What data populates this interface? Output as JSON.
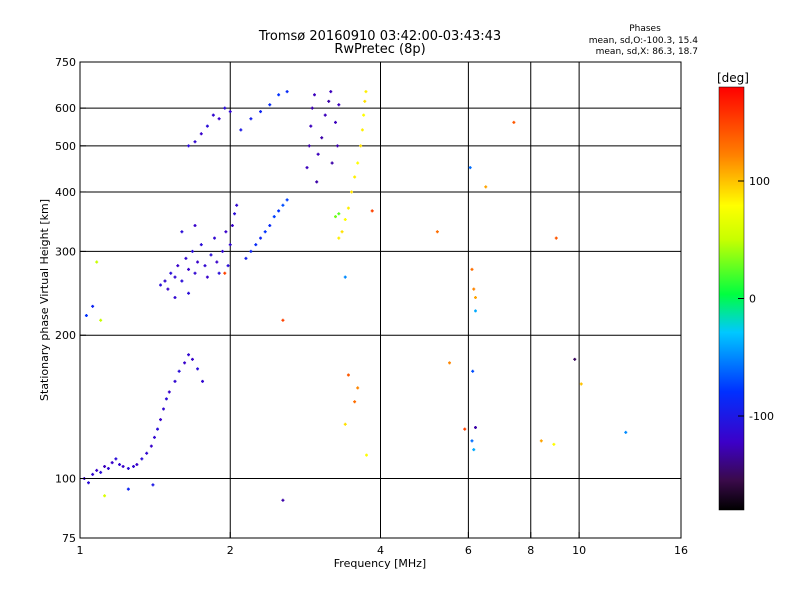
{
  "header": {
    "title": "Tromsø 20160910 03:42:00-03:43:43",
    "subtitle": "RwPretec (8p)",
    "phases_label": "Phases",
    "phases_o": "mean, sd,O:-100.3, 15.4",
    "phases_x": "mean, sd,X:  86.3, 18.7"
  },
  "colorbar": {
    "unit": "[deg]",
    "ticks": [
      {
        "value": 100,
        "label": "100"
      },
      {
        "value": 0,
        "label": "0"
      },
      {
        "value": -100,
        "label": "-100"
      }
    ],
    "range": [
      -180,
      180
    ]
  },
  "chart_data": {
    "type": "scatter",
    "xlabel": "Frequency [MHz]",
    "ylabel": "Stationary phase Virtual Height [km]",
    "xscale": "log",
    "yscale": "log",
    "xlim": [
      1,
      16
    ],
    "ylim": [
      75,
      750
    ],
    "xticks": [
      {
        "value": 1,
        "label": "1"
      },
      {
        "value": 2,
        "label": "2"
      },
      {
        "value": 4,
        "label": "4"
      },
      {
        "value": 6,
        "label": "6"
      },
      {
        "value": 8,
        "label": "8"
      },
      {
        "value": 10,
        "label": "10"
      },
      {
        "value": 16,
        "label": "16"
      }
    ],
    "xgrid": [
      2,
      4,
      6,
      8,
      10
    ],
    "yticks": [
      {
        "value": 75,
        "label": "75"
      },
      {
        "value": 100,
        "label": "100"
      },
      {
        "value": 200,
        "label": "200"
      },
      {
        "value": 300,
        "label": "300"
      },
      {
        "value": 400,
        "label": "400"
      },
      {
        "value": 500,
        "label": "500"
      },
      {
        "value": 600,
        "label": "600"
      },
      {
        "value": 750,
        "label": "750"
      }
    ],
    "ygrid": [
      100,
      200,
      300,
      400,
      500,
      600
    ],
    "grid": true,
    "series": [
      {
        "points": [
          {
            "x": 1.02,
            "y": 100,
            "phase": -120
          },
          {
            "x": 1.04,
            "y": 98,
            "phase": -110
          },
          {
            "x": 1.06,
            "y": 102,
            "phase": -115
          },
          {
            "x": 1.08,
            "y": 104,
            "phase": -120
          },
          {
            "x": 1.1,
            "y": 103,
            "phase": -110
          },
          {
            "x": 1.12,
            "y": 106,
            "phase": -125
          },
          {
            "x": 1.14,
            "y": 105,
            "phase": -115
          },
          {
            "x": 1.16,
            "y": 108,
            "phase": -120
          },
          {
            "x": 1.18,
            "y": 110,
            "phase": -110
          },
          {
            "x": 1.2,
            "y": 107,
            "phase": -115
          },
          {
            "x": 1.22,
            "y": 106,
            "phase": -120
          },
          {
            "x": 1.25,
            "y": 105,
            "phase": -110
          },
          {
            "x": 1.28,
            "y": 106,
            "phase": -115
          },
          {
            "x": 1.3,
            "y": 107,
            "phase": -120
          },
          {
            "x": 1.33,
            "y": 110,
            "phase": -110
          },
          {
            "x": 1.36,
            "y": 113,
            "phase": -115
          },
          {
            "x": 1.39,
            "y": 117,
            "phase": -120
          },
          {
            "x": 1.41,
            "y": 122,
            "phase": -115
          },
          {
            "x": 1.43,
            "y": 127,
            "phase": -110
          },
          {
            "x": 1.45,
            "y": 133,
            "phase": -120
          },
          {
            "x": 1.47,
            "y": 140,
            "phase": -115
          },
          {
            "x": 1.49,
            "y": 147,
            "phase": -110
          },
          {
            "x": 1.51,
            "y": 152,
            "phase": -120
          },
          {
            "x": 1.55,
            "y": 160,
            "phase": -115
          },
          {
            "x": 1.58,
            "y": 168,
            "phase": -110
          },
          {
            "x": 1.62,
            "y": 175,
            "phase": -120
          },
          {
            "x": 1.65,
            "y": 182,
            "phase": -115
          },
          {
            "x": 1.68,
            "y": 178,
            "phase": -120
          },
          {
            "x": 1.72,
            "y": 170,
            "phase": -110
          },
          {
            "x": 1.76,
            "y": 160,
            "phase": -115
          },
          {
            "x": 1.12,
            "y": 92,
            "phase": 60
          },
          {
            "x": 1.25,
            "y": 95,
            "phase": -90
          },
          {
            "x": 1.4,
            "y": 97,
            "phase": -100
          },
          {
            "x": 1.08,
            "y": 285,
            "phase": 50
          },
          {
            "x": 1.1,
            "y": 215,
            "phase": 50
          },
          {
            "x": 1.03,
            "y": 220,
            "phase": -80
          },
          {
            "x": 1.06,
            "y": 230,
            "phase": -90
          },
          {
            "x": 1.45,
            "y": 255,
            "phase": -110
          },
          {
            "x": 1.48,
            "y": 260,
            "phase": -115
          },
          {
            "x": 1.5,
            "y": 250,
            "phase": -120
          },
          {
            "x": 1.52,
            "y": 270,
            "phase": -110
          },
          {
            "x": 1.55,
            "y": 265,
            "phase": -115
          },
          {
            "x": 1.57,
            "y": 280,
            "phase": -120
          },
          {
            "x": 1.6,
            "y": 260,
            "phase": -110
          },
          {
            "x": 1.63,
            "y": 290,
            "phase": -115
          },
          {
            "x": 1.65,
            "y": 275,
            "phase": -120
          },
          {
            "x": 1.68,
            "y": 300,
            "phase": -110
          },
          {
            "x": 1.7,
            "y": 270,
            "phase": -115
          },
          {
            "x": 1.72,
            "y": 285,
            "phase": -120
          },
          {
            "x": 1.75,
            "y": 310,
            "phase": -110
          },
          {
            "x": 1.78,
            "y": 280,
            "phase": -115
          },
          {
            "x": 1.8,
            "y": 265,
            "phase": -120
          },
          {
            "x": 1.83,
            "y": 295,
            "phase": -110
          },
          {
            "x": 1.86,
            "y": 320,
            "phase": -115
          },
          {
            "x": 1.88,
            "y": 285,
            "phase": -120
          },
          {
            "x": 1.9,
            "y": 270,
            "phase": -110
          },
          {
            "x": 1.93,
            "y": 300,
            "phase": -115
          },
          {
            "x": 1.96,
            "y": 330,
            "phase": -120
          },
          {
            "x": 1.98,
            "y": 280,
            "phase": -110
          },
          {
            "x": 2.0,
            "y": 310,
            "phase": -115
          },
          {
            "x": 2.02,
            "y": 340,
            "phase": -120
          },
          {
            "x": 2.04,
            "y": 360,
            "phase": -110
          },
          {
            "x": 2.06,
            "y": 375,
            "phase": -115
          },
          {
            "x": 1.6,
            "y": 330,
            "phase": -110
          },
          {
            "x": 1.7,
            "y": 340,
            "phase": -120
          },
          {
            "x": 1.55,
            "y": 240,
            "phase": -115
          },
          {
            "x": 1.65,
            "y": 245,
            "phase": -110
          },
          {
            "x": 2.15,
            "y": 290,
            "phase": -95
          },
          {
            "x": 2.2,
            "y": 300,
            "phase": -90
          },
          {
            "x": 2.25,
            "y": 310,
            "phase": -85
          },
          {
            "x": 2.3,
            "y": 320,
            "phase": -90
          },
          {
            "x": 2.35,
            "y": 330,
            "phase": -80
          },
          {
            "x": 2.4,
            "y": 340,
            "phase": -85
          },
          {
            "x": 2.45,
            "y": 355,
            "phase": -75
          },
          {
            "x": 2.5,
            "y": 365,
            "phase": -80
          },
          {
            "x": 2.55,
            "y": 375,
            "phase": -70
          },
          {
            "x": 2.6,
            "y": 385,
            "phase": -75
          },
          {
            "x": 1.65,
            "y": 500,
            "phase": -110
          },
          {
            "x": 1.7,
            "y": 510,
            "phase": -115
          },
          {
            "x": 1.75,
            "y": 530,
            "phase": -120
          },
          {
            "x": 1.8,
            "y": 550,
            "phase": -110
          },
          {
            "x": 1.85,
            "y": 580,
            "phase": -115
          },
          {
            "x": 1.9,
            "y": 570,
            "phase": -120
          },
          {
            "x": 1.95,
            "y": 600,
            "phase": -110
          },
          {
            "x": 2.0,
            "y": 590,
            "phase": -115
          },
          {
            "x": 2.1,
            "y": 540,
            "phase": -100
          },
          {
            "x": 2.2,
            "y": 570,
            "phase": -95
          },
          {
            "x": 2.3,
            "y": 590,
            "phase": -90
          },
          {
            "x": 2.4,
            "y": 610,
            "phase": -85
          },
          {
            "x": 2.5,
            "y": 640,
            "phase": -80
          },
          {
            "x": 2.6,
            "y": 650,
            "phase": -85
          },
          {
            "x": 2.85,
            "y": 450,
            "phase": -125
          },
          {
            "x": 2.88,
            "y": 500,
            "phase": -130
          },
          {
            "x": 2.9,
            "y": 550,
            "phase": -125
          },
          {
            "x": 2.92,
            "y": 600,
            "phase": -130
          },
          {
            "x": 2.95,
            "y": 640,
            "phase": -125
          },
          {
            "x": 2.98,
            "y": 420,
            "phase": -130
          },
          {
            "x": 3.0,
            "y": 480,
            "phase": -125
          },
          {
            "x": 3.05,
            "y": 520,
            "phase": -130
          },
          {
            "x": 3.1,
            "y": 580,
            "phase": -125
          },
          {
            "x": 3.15,
            "y": 620,
            "phase": -130
          },
          {
            "x": 3.18,
            "y": 650,
            "phase": -125
          },
          {
            "x": 3.2,
            "y": 460,
            "phase": -130
          },
          {
            "x": 3.25,
            "y": 560,
            "phase": -125
          },
          {
            "x": 3.28,
            "y": 500,
            "phase": -130
          },
          {
            "x": 3.3,
            "y": 610,
            "phase": -125
          },
          {
            "x": 3.3,
            "y": 320,
            "phase": 85
          },
          {
            "x": 3.35,
            "y": 330,
            "phase": 90
          },
          {
            "x": 3.4,
            "y": 350,
            "phase": 80
          },
          {
            "x": 3.45,
            "y": 370,
            "phase": 85
          },
          {
            "x": 3.5,
            "y": 400,
            "phase": 90
          },
          {
            "x": 3.55,
            "y": 430,
            "phase": 85
          },
          {
            "x": 3.6,
            "y": 460,
            "phase": 80
          },
          {
            "x": 3.65,
            "y": 500,
            "phase": 90
          },
          {
            "x": 3.68,
            "y": 540,
            "phase": 85
          },
          {
            "x": 3.7,
            "y": 580,
            "phase": 80
          },
          {
            "x": 3.72,
            "y": 620,
            "phase": 90
          },
          {
            "x": 3.74,
            "y": 650,
            "phase": 85
          },
          {
            "x": 3.25,
            "y": 355,
            "phase": 30
          },
          {
            "x": 3.3,
            "y": 360,
            "phase": 25
          },
          {
            "x": 3.4,
            "y": 265,
            "phase": -50
          },
          {
            "x": 2.55,
            "y": 215,
            "phase": 150
          },
          {
            "x": 2.55,
            "y": 90,
            "phase": -130
          },
          {
            "x": 3.45,
            "y": 165,
            "phase": 140
          },
          {
            "x": 3.55,
            "y": 145,
            "phase": 130
          },
          {
            "x": 3.4,
            "y": 130,
            "phase": 90
          },
          {
            "x": 3.6,
            "y": 155,
            "phase": 120
          },
          {
            "x": 3.75,
            "y": 112,
            "phase": 80
          },
          {
            "x": 3.85,
            "y": 365,
            "phase": 150
          },
          {
            "x": 5.2,
            "y": 330,
            "phase": 130
          },
          {
            "x": 5.5,
            "y": 175,
            "phase": 120
          },
          {
            "x": 6.05,
            "y": 450,
            "phase": -60
          },
          {
            "x": 6.1,
            "y": 275,
            "phase": 130
          },
          {
            "x": 6.15,
            "y": 250,
            "phase": 120
          },
          {
            "x": 6.2,
            "y": 240,
            "phase": 110
          },
          {
            "x": 6.2,
            "y": 225,
            "phase": -40
          },
          {
            "x": 6.12,
            "y": 168,
            "phase": -70
          },
          {
            "x": 6.2,
            "y": 128,
            "phase": -130
          },
          {
            "x": 6.1,
            "y": 120,
            "phase": -60
          },
          {
            "x": 6.15,
            "y": 115,
            "phase": -40
          },
          {
            "x": 6.5,
            "y": 410,
            "phase": 110
          },
          {
            "x": 7.4,
            "y": 560,
            "phase": 140
          },
          {
            "x": 8.4,
            "y": 120,
            "phase": 110
          },
          {
            "x": 8.9,
            "y": 118,
            "phase": 80
          },
          {
            "x": 9.0,
            "y": 320,
            "phase": 140
          },
          {
            "x": 9.8,
            "y": 178,
            "phase": -150
          },
          {
            "x": 10.1,
            "y": 158,
            "phase": 100
          },
          {
            "x": 12.4,
            "y": 125,
            "phase": -50
          },
          {
            "x": 5.9,
            "y": 127,
            "phase": 150
          },
          {
            "x": 1.95,
            "y": 270,
            "phase": 150
          }
        ]
      }
    ]
  }
}
